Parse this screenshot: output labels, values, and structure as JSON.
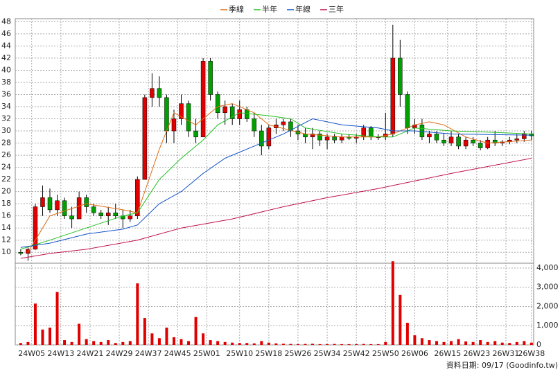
{
  "chart_data": {
    "type": "candlestick",
    "legend": "top",
    "source": "資料日期: 09/17  (Goodinfo.tw)",
    "up_color": "#e00000",
    "down_color": "#00a000",
    "volume_color": "#e00000",
    "grid": true,
    "x": [
      2,
      4,
      6,
      8,
      10,
      12,
      14,
      16,
      18,
      20,
      22,
      24,
      26,
      28,
      30,
      32,
      34,
      36,
      38,
      40,
      42,
      44,
      46,
      48,
      50,
      52,
      54,
      56,
      58,
      60,
      62,
      64,
      66,
      68,
      70,
      72,
      74,
      76,
      78,
      80,
      82,
      84,
      86,
      88,
      90,
      92,
      94,
      96,
      98,
      100,
      102,
      104,
      106,
      108,
      110,
      112,
      114,
      116,
      118,
      120,
      122,
      124,
      126,
      128,
      130,
      132,
      134,
      136,
      138,
      140,
      142
    ],
    "open": [
      10,
      9.8,
      10.5,
      17.5,
      19,
      17,
      18.5,
      16,
      15.5,
      19,
      17.5,
      16.5,
      16,
      16.5,
      16,
      15.5,
      16,
      22,
      35.5,
      37,
      35.5,
      30,
      32,
      34.5,
      30,
      29,
      41.5,
      36,
      33,
      34,
      32,
      33.5,
      32,
      30,
      27.5,
      30.5,
      31,
      31.5,
      30,
      29.5,
      29,
      29.5,
      28.5,
      29,
      28.5,
      29,
      28.8,
      29,
      30.5,
      29,
      29,
      29.5,
      42,
      36,
      30.5,
      31,
      29,
      29.5,
      28.5,
      28,
      29,
      27.5,
      28.5,
      28,
      27.2,
      28.5,
      28,
      28.2,
      28.5,
      28.7,
      29.5
    ],
    "high": [
      10.5,
      10.8,
      18,
      21,
      20.5,
      19.5,
      19,
      17.5,
      20,
      19.5,
      18,
      17,
      17.5,
      18,
      17,
      17,
      22.5,
      36,
      39.5,
      39,
      36,
      33.5,
      36,
      35,
      32,
      42,
      42,
      36.5,
      35,
      34.5,
      35,
      34,
      33,
      31,
      31,
      32,
      32,
      32,
      31,
      30.5,
      30.5,
      30,
      29.5,
      29.5,
      29.5,
      29.5,
      29.5,
      31,
      30.8,
      29.5,
      33,
      47.5,
      45,
      36.5,
      32,
      32,
      30,
      30,
      29.5,
      30,
      29.5,
      29,
      29,
      28.5,
      29,
      30,
      28.5,
      29,
      29.5,
      30,
      30
    ],
    "low": [
      9.5,
      8.6,
      10.4,
      16,
      16.5,
      16,
      15.5,
      14,
      15.5,
      16.5,
      16,
      15.5,
      14.5,
      15.5,
      14,
      15,
      15.5,
      22,
      34,
      34,
      28,
      28,
      31,
      29,
      28,
      29,
      35,
      32,
      31,
      31,
      31,
      31.5,
      29,
      26,
      27,
      29.5,
      30,
      29,
      28.5,
      28,
      27,
      27.5,
      27,
      28,
      28,
      28.5,
      28,
      28.5,
      28.5,
      28.5,
      28.5,
      29,
      34,
      29.5,
      29.5,
      28.5,
      28,
      28,
      27.5,
      27.5,
      27,
      27,
      27.5,
      26.8,
      27,
      27.5,
      27.5,
      27.8,
      28,
      28.2,
      28.5
    ],
    "close": [
      9.8,
      10.5,
      17.5,
      19,
      17,
      18.5,
      16,
      15.5,
      19,
      17.5,
      16.5,
      16,
      16.5,
      16,
      15.5,
      16,
      22,
      35.5,
      37,
      35.5,
      30,
      32,
      34.5,
      30,
      29,
      41.5,
      36,
      33,
      34,
      32,
      33.5,
      32,
      30,
      27.5,
      30.5,
      31,
      31.5,
      30,
      29.5,
      29,
      29.5,
      28.5,
      29,
      28.5,
      29,
      28.8,
      29,
      30.5,
      29,
      29,
      29.5,
      42,
      36,
      30.5,
      31,
      29,
      29.5,
      28.5,
      28,
      29,
      27.5,
      28.5,
      28,
      27.2,
      28.5,
      28,
      28.2,
      28.5,
      28.7,
      29.5,
      29.2
    ],
    "volume": [
      100,
      150,
      2150,
      800,
      900,
      2750,
      250,
      150,
      1100,
      300,
      200,
      150,
      250,
      100,
      150,
      200,
      3200,
      1400,
      600,
      350,
      900,
      400,
      300,
      200,
      1450,
      600,
      250,
      200,
      150,
      120,
      100,
      100,
      80,
      200,
      120,
      80,
      60,
      50,
      40,
      50,
      60,
      40,
      40,
      50,
      40,
      40,
      40,
      50,
      40,
      40,
      150,
      4350,
      2600,
      1150,
      500,
      350,
      250,
      200,
      150,
      200,
      300,
      180,
      150,
      250,
      150,
      200,
      120,
      100,
      150,
      200,
      120
    ],
    "series": [
      {
        "name": "季線",
        "color": "#e06a10",
        "x": [
          4,
          10,
          20,
          30,
          34,
          40,
          44,
          50,
          56,
          60,
          66,
          70,
          80,
          90,
          100,
          104,
          110,
          114,
          118,
          124,
          130,
          142
        ],
        "values": [
          10,
          16,
          18,
          17,
          16.5,
          27,
          33,
          31,
          34,
          34.5,
          33,
          31,
          29.5,
          29,
          29,
          29.5,
          31,
          31.5,
          31,
          29,
          28,
          28.5
        ]
      },
      {
        "name": "半年",
        "color": "#20c020",
        "x": [
          2,
          10,
          20,
          30,
          34,
          40,
          46,
          52,
          56,
          62,
          70,
          76,
          80,
          90,
          100,
          104,
          110,
          120,
          130,
          142
        ],
        "values": [
          10.5,
          12,
          14,
          16,
          16.5,
          22,
          25.5,
          28.5,
          31,
          33,
          32.5,
          32,
          30.5,
          29.5,
          29,
          29,
          30.5,
          30,
          29.8,
          29.5
        ]
      },
      {
        "name": "年線",
        "color": "#1050c8",
        "x": [
          2,
          10,
          20,
          30,
          34,
          40,
          46,
          52,
          58,
          66,
          74,
          82,
          90,
          100,
          104,
          110,
          120,
          142
        ],
        "values": [
          10.8,
          11.5,
          13,
          13.8,
          14.5,
          18,
          20,
          23,
          25.5,
          27.5,
          29.5,
          32,
          31,
          30.5,
          30,
          30,
          29.5,
          29.3
        ]
      },
      {
        "name": "三年",
        "color": "#c0104a",
        "x": [
          2,
          10,
          20,
          34,
          46,
          60,
          74,
          86,
          100,
          104,
          120,
          142
        ],
        "values": [
          9,
          9.8,
          10.5,
          12,
          14,
          15.5,
          17.5,
          19,
          20.5,
          21,
          23,
          25.5
        ]
      }
    ],
    "xlim": [
      0.5,
      142.6
    ],
    "xticks": [
      {
        "value": 5,
        "label": "24W05"
      },
      {
        "value": 13,
        "label": "24W13"
      },
      {
        "value": 21,
        "label": "24W21"
      },
      {
        "value": 29,
        "label": "24W29"
      },
      {
        "value": 37,
        "label": "24W37"
      },
      {
        "value": 45,
        "label": "24W45"
      },
      {
        "value": 53,
        "label": "25W01"
      },
      {
        "value": 62,
        "label": "25W10"
      },
      {
        "value": 70,
        "label": "25W18"
      },
      {
        "value": 78,
        "label": "25W26"
      },
      {
        "value": 86,
        "label": "25W34"
      },
      {
        "value": 94,
        "label": "25W42"
      },
      {
        "value": 102,
        "label": "25W50"
      },
      {
        "value": 110,
        "label": "26W06"
      },
      {
        "value": 119,
        "label": "26W15"
      },
      {
        "value": 127,
        "label": "26W23"
      },
      {
        "value": 135,
        "label": "26W31"
      },
      {
        "value": 142,
        "label": "26W38"
      }
    ],
    "ylim": [
      8.2,
      48.5
    ],
    "yticks": [
      10,
      12,
      14,
      16,
      18,
      20,
      22,
      24,
      26,
      28,
      30,
      32,
      34,
      36,
      38,
      40,
      42,
      44,
      46,
      48
    ],
    "y2lim": [
      0,
      4250
    ],
    "y2ticks": [
      0,
      {
        "value": 1000,
        "label": "1,000"
      },
      {
        "value": 2000,
        "label": "2,000"
      },
      {
        "value": 3000,
        "label": "3,000"
      },
      {
        "value": 4000,
        "label": "4,000"
      }
    ]
  }
}
